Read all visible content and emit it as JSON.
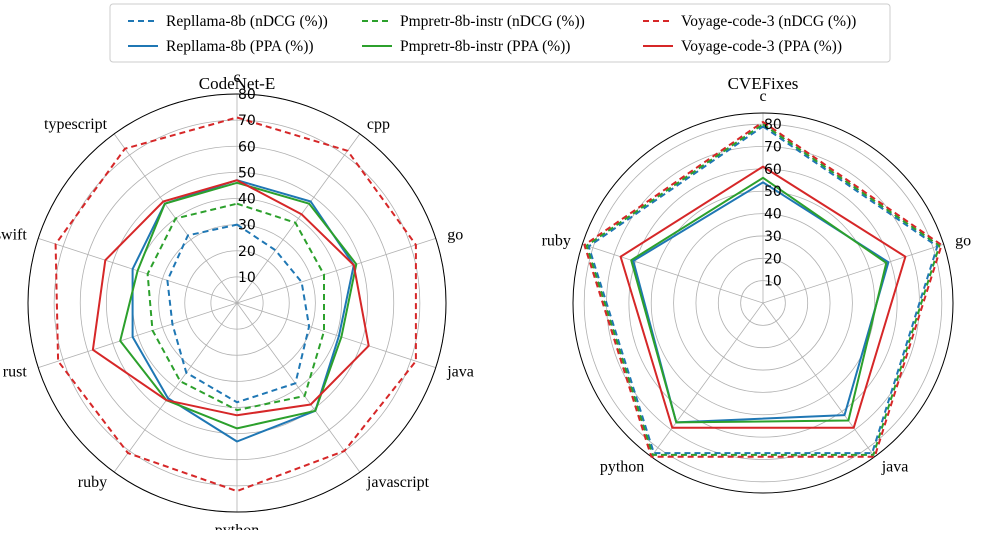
{
  "legend": [
    {
      "label": "Repllama-8b (nDCG (%))",
      "color": "#1f77b4",
      "style": "dashed"
    },
    {
      "label": "Pmpretr-8b-instr (nDCG (%))",
      "color": "#2ca02c",
      "style": "dashed"
    },
    {
      "label": "Voyage-code-3 (nDCG (%))",
      "color": "#d62728",
      "style": "dashed"
    },
    {
      "label": "Repllama-8b (PPA (%))",
      "color": "#1f77b4",
      "style": "solid"
    },
    {
      "label": "Pmpretr-8b-instr (PPA (%))",
      "color": "#2ca02c",
      "style": "solid"
    },
    {
      "label": "Voyage-code-3 (PPA (%))",
      "color": "#d62728",
      "style": "solid"
    }
  ],
  "chart_data": [
    {
      "type": "radar",
      "title": "CodeNet-E",
      "categories": [
        "c",
        "cpp",
        "go",
        "java",
        "javascript",
        "python",
        "ruby",
        "rust",
        "swift",
        "typescript"
      ],
      "rlim": [
        0,
        80
      ],
      "rticks": [
        "10",
        "20",
        "30",
        "40",
        "50",
        "60",
        "70",
        "80"
      ],
      "series": [
        {
          "name": "Repllama-8b (nDCG (%))",
          "color": "#1f77b4",
          "style": "dashed",
          "values": [
            30,
            25,
            26,
            29,
            38,
            38,
            33,
            26,
            28,
            32
          ]
        },
        {
          "name": "Pmpretr-8b-instr (nDCG (%))",
          "color": "#2ca02c",
          "style": "dashed",
          "values": [
            38,
            38,
            35,
            35,
            44,
            41,
            37,
            34,
            36,
            40
          ]
        },
        {
          "name": "Voyage-code-3 (nDCG (%))",
          "color": "#d62728",
          "style": "dashed",
          "values": [
            71,
            72,
            72,
            72,
            70,
            72,
            71,
            72,
            73,
            73
          ]
        },
        {
          "name": "Repllama-8b (PPA (%))",
          "color": "#1f77b4",
          "style": "solid",
          "values": [
            47,
            48,
            47,
            41,
            51,
            53,
            45,
            42,
            42,
            47
          ]
        },
        {
          "name": "Pmpretr-8b-instr (PPA (%))",
          "color": "#2ca02c",
          "style": "solid",
          "values": [
            46,
            47,
            48,
            42,
            51,
            48,
            46,
            47,
            40,
            47
          ]
        },
        {
          "name": "Voyage-code-3 (PPA (%))",
          "color": "#d62728",
          "style": "solid",
          "values": [
            47,
            42,
            47,
            53,
            48,
            43,
            46,
            58,
            53,
            48
          ]
        }
      ]
    },
    {
      "type": "radar",
      "title": "CVEFixes",
      "categories": [
        "c",
        "go",
        "java",
        "python",
        "ruby"
      ],
      "rlim": [
        0,
        85
      ],
      "rticks": [
        "10",
        "20",
        "30",
        "40",
        "50",
        "60",
        "70",
        "80"
      ],
      "series": [
        {
          "name": "Repllama-8b (nDCG (%))",
          "color": "#1f77b4",
          "style": "dashed",
          "values": [
            79,
            82,
            83,
            83,
            82
          ]
        },
        {
          "name": "Pmpretr-8b-instr (nDCG (%))",
          "color": "#2ca02c",
          "style": "dashed",
          "values": [
            80,
            83,
            84,
            84,
            83
          ]
        },
        {
          "name": "Voyage-code-3 (nDCG (%))",
          "color": "#d62728",
          "style": "dashed",
          "values": [
            81,
            84,
            85,
            85,
            84
          ]
        },
        {
          "name": "Repllama-8b (PPA (%))",
          "color": "#1f77b4",
          "style": "solid",
          "values": [
            54,
            59,
            62,
            66,
            61
          ]
        },
        {
          "name": "Pmpretr-8b-instr (PPA (%))",
          "color": "#2ca02c",
          "style": "solid",
          "values": [
            56,
            58,
            65,
            66,
            62
          ]
        },
        {
          "name": "Voyage-code-3 (PPA (%))",
          "color": "#d62728",
          "style": "solid",
          "values": [
            61,
            67,
            69,
            69,
            67
          ]
        }
      ]
    }
  ]
}
